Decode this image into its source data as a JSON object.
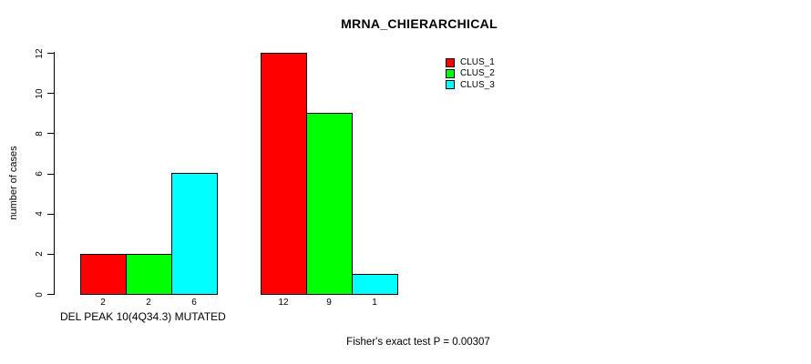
{
  "chart_data": {
    "type": "bar",
    "title": "MRNA_CHIERARCHICAL",
    "ylabel": "number of cases",
    "xlabel": "DEL PEAK 10(4Q34.3) MUTATED",
    "annotation": "Fisher's exact test P = 0.00307",
    "ylim": [
      0,
      12
    ],
    "yticks": [
      0,
      2,
      4,
      6,
      8,
      10,
      12
    ],
    "grid": false,
    "legend_position": "top-right",
    "series": [
      {
        "name": "CLUS_1",
        "color": "#FF0000",
        "values": [
          2,
          12
        ]
      },
      {
        "name": "CLUS_2",
        "color": "#00FF00",
        "values": [
          2,
          9
        ]
      },
      {
        "name": "CLUS_3",
        "color": "#00FFFF",
        "values": [
          6,
          1
        ]
      }
    ],
    "bar_tick_labels": [
      [
        "2",
        "2",
        "6"
      ],
      [
        "12",
        "9",
        "1"
      ]
    ],
    "bar_border_color": "#000000",
    "axis_color": "#000000",
    "background": "#FFFFFF",
    "text_color": "#000000"
  }
}
